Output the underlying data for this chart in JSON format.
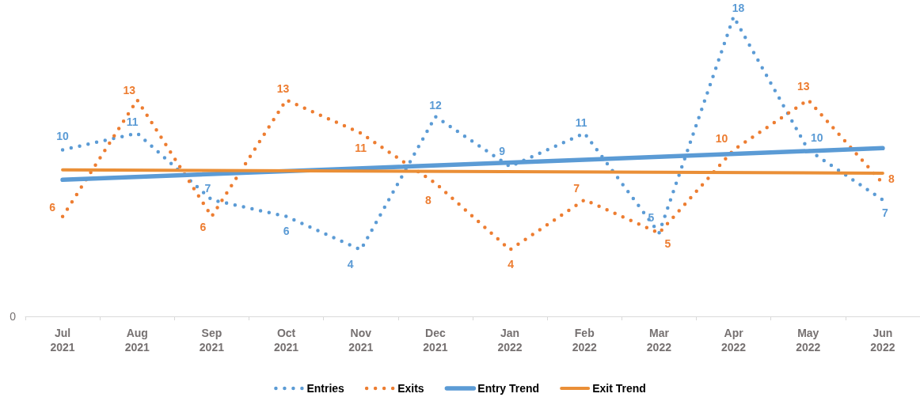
{
  "chart_data": {
    "type": "line",
    "categories": [
      "Jul 2021",
      "Aug 2021",
      "Sep 2021",
      "Oct 2021",
      "Nov 2021",
      "Dec 2021",
      "Jan 2022",
      "Feb 2022",
      "Mar 2022",
      "Apr 2022",
      "May 2022",
      "Jun 2022"
    ],
    "series": [
      {
        "name": "Entries",
        "color": "#5b9bd5",
        "line_style": "dotted",
        "data_labels": true,
        "values": [
          10,
          11,
          7,
          6,
          4,
          12,
          9,
          11,
          5,
          18,
          10,
          7
        ]
      },
      {
        "name": "Exits",
        "color": "#ed7d31",
        "line_style": "dotted",
        "data_labels": true,
        "values": [
          6,
          13,
          6,
          13,
          11,
          8,
          4,
          7,
          5,
          10,
          13,
          8
        ]
      },
      {
        "name": "Entry Trend",
        "type": "line",
        "color": "#5b9bd5",
        "line_style": "solid",
        "x": [
          "Jul 2021",
          "Jun 2022"
        ],
        "values": [
          8.2,
          10.1
        ]
      },
      {
        "name": "Exit Trend",
        "type": "line",
        "color": "#ea8f37",
        "line_style": "solid",
        "x": [
          "Jul 2021",
          "Jun 2022"
        ],
        "values": [
          8.8,
          8.6
        ]
      }
    ],
    "ylim": [
      0,
      19
    ],
    "annotations": [
      "0"
    ],
    "grid": false,
    "legend": "bottom",
    "marker": "none"
  }
}
